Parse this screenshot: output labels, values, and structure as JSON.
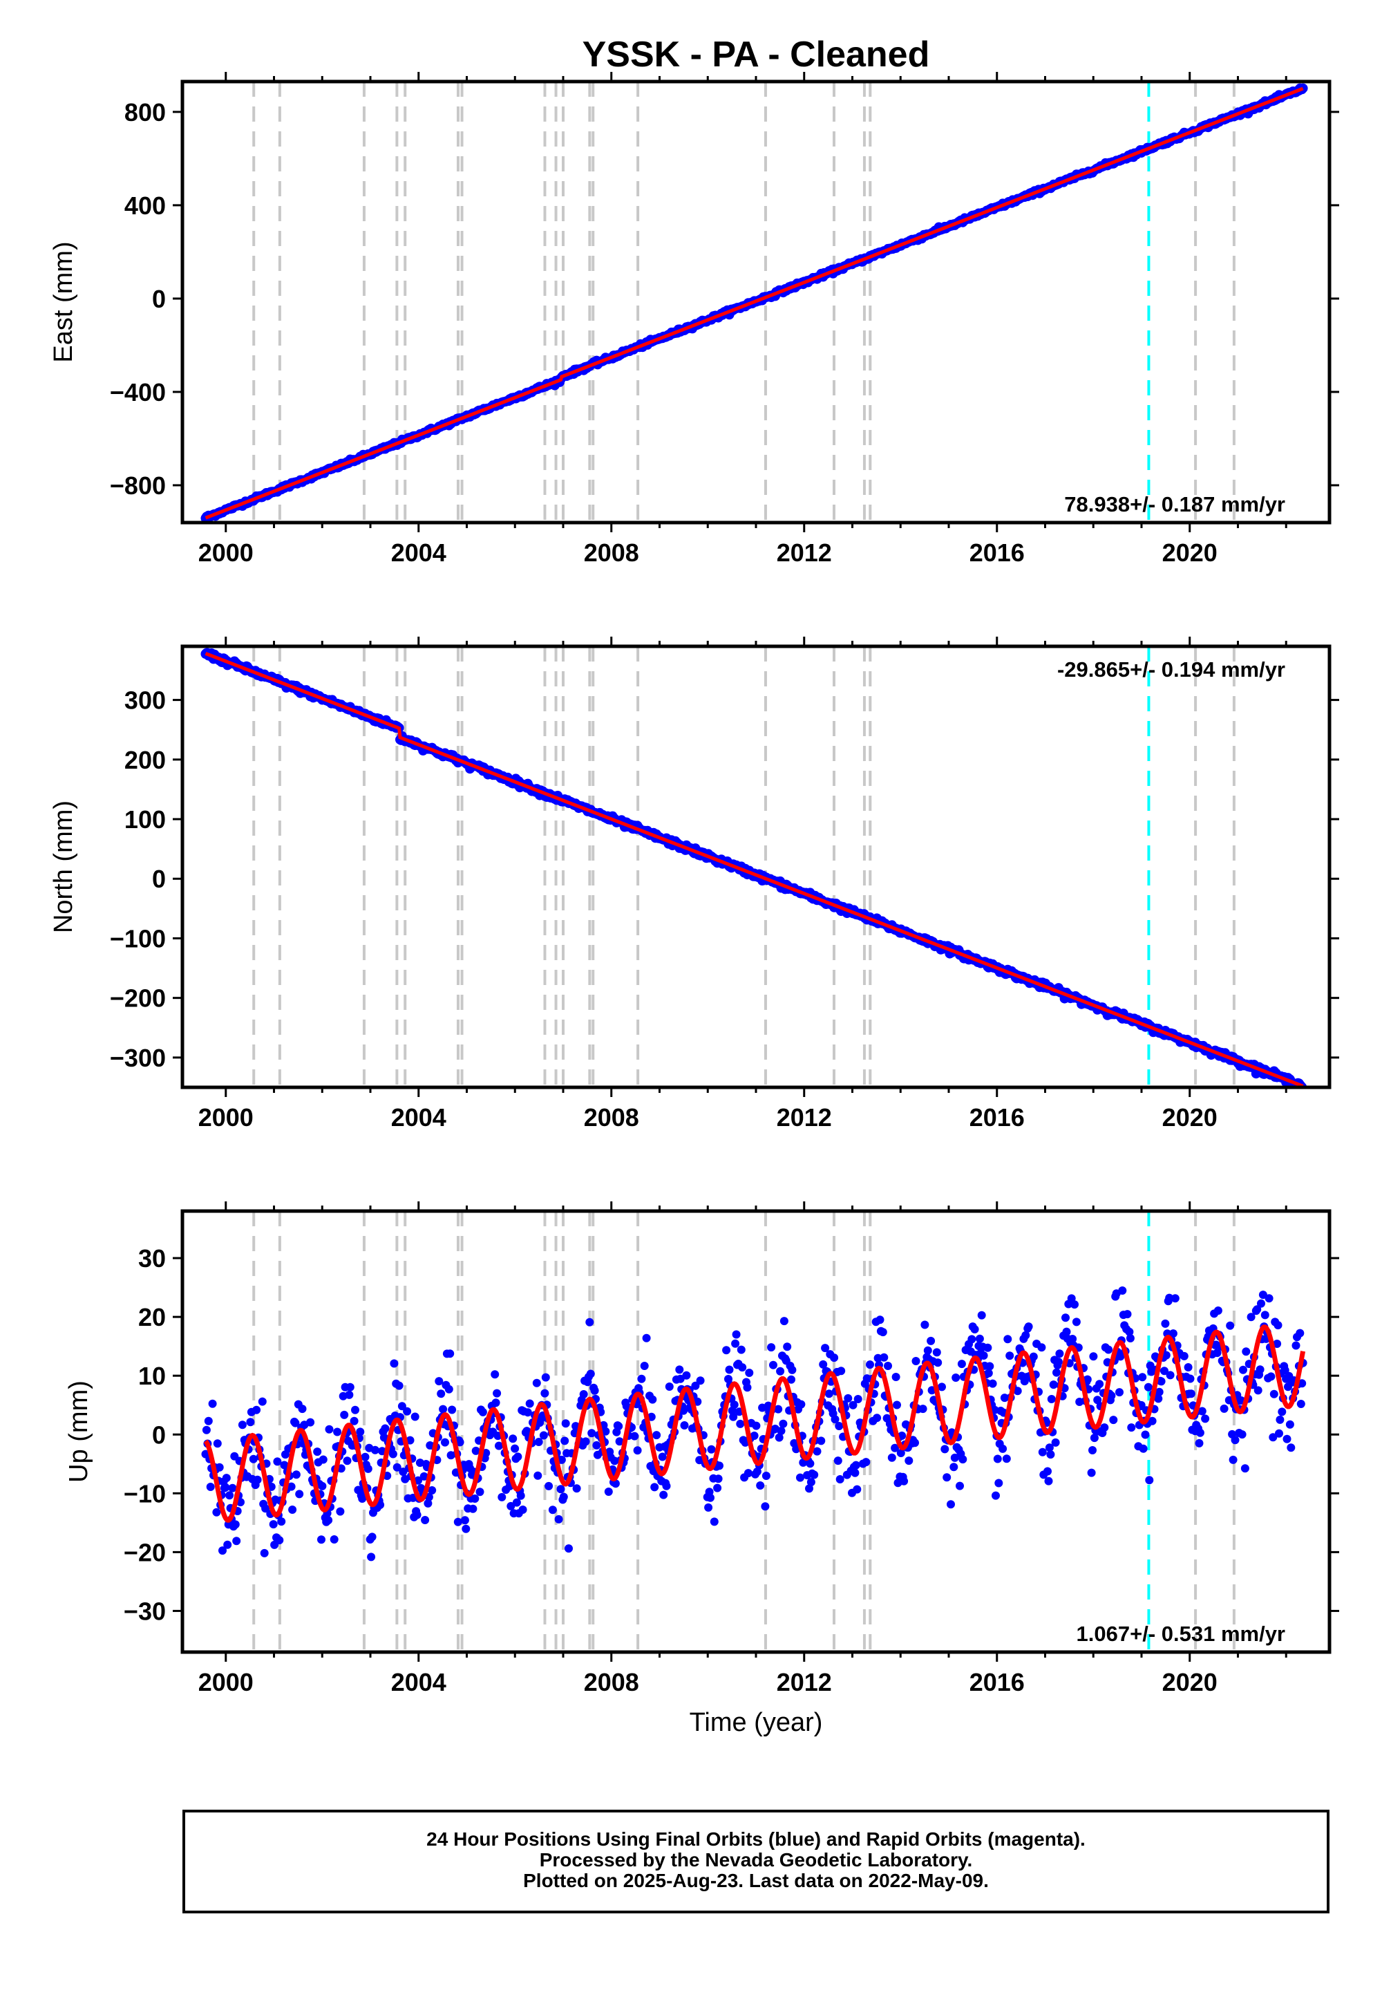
{
  "title": "YSSK  - PA - Cleaned",
  "colors": {
    "final_orbits": "#0000ff",
    "rapid_orbits": "#ff00ff",
    "model_fit": "#ff0000",
    "equipment_changes": "#c8c8c8",
    "earthquake_marker": "#00ffff"
  },
  "chart_data": [
    {
      "type": "scatter",
      "ylabel": "East (mm)",
      "xlim": [
        1999.1,
        2022.9
      ],
      "ylim": [
        -960,
        930
      ],
      "yticks": [
        -800,
        -400,
        0,
        400,
        800
      ],
      "xticks": [
        2000,
        2004,
        2008,
        2012,
        2016,
        2020
      ],
      "series": [
        {
          "values_desc": "daily positions",
          "x_start": 1999.58,
          "x_end": 2022.35,
          "y_start": -940,
          "y_end": 888
        }
      ],
      "rate_label": "78.938+/- 0.187 mm/yr",
      "rate_position": "bottom-right"
    },
    {
      "type": "scatter",
      "ylabel": "North (mm)",
      "xlim": [
        1999.1,
        2022.9
      ],
      "ylim": [
        -350,
        390
      ],
      "yticks": [
        -300,
        -200,
        -100,
        0,
        100,
        200,
        300
      ],
      "xticks": [
        2000,
        2004,
        2008,
        2012,
        2016,
        2020
      ],
      "series": [
        {
          "values_desc": "daily positions",
          "x_start": 1999.58,
          "x_end": 2022.35,
          "y_start": 378,
          "y_end": -333
        }
      ],
      "offsets": [
        {
          "x": 2003.6,
          "dy": -15
        }
      ],
      "rate_label": "-29.865+/- 0.194 mm/yr",
      "rate_position": "top-right"
    },
    {
      "type": "scatter",
      "ylabel": "Up (mm)",
      "xlabel": "Time (year)",
      "xlim": [
        1999.1,
        2022.9
      ],
      "ylim": [
        -37,
        38
      ],
      "yticks": [
        -30,
        -20,
        -10,
        0,
        10,
        20,
        30
      ],
      "xticks": [
        2000,
        2004,
        2008,
        2012,
        2016,
        2020
      ],
      "series": [
        {
          "values_desc": "daily positions with annual cycle",
          "x_start": 1999.58,
          "x_end": 2022.35,
          "trend_start": -8,
          "trend_end": 12,
          "annual_amplitude": 7
        }
      ],
      "rate_label": "1.067+/- 0.531 mm/yr",
      "rate_position": "bottom-right"
    }
  ],
  "equipment_lines": [
    2000.58,
    2001.12,
    2002.87,
    2003.55,
    2003.72,
    2004.82,
    2004.9,
    2006.62,
    2006.85,
    2007.0,
    2007.55,
    2007.62,
    2008.55,
    2011.2,
    2012.62,
    2013.25,
    2013.37,
    2020.12,
    2020.92
  ],
  "earthquake_lines": [
    2019.15
  ],
  "footer": {
    "line1": "24 Hour Positions Using Final Orbits (blue) and Rapid Orbits (magenta).",
    "line2": "Processed by the Nevada Geodetic Laboratory.",
    "line3": "Plotted on 2025-Aug-23. Last data on 2022-May-09."
  }
}
